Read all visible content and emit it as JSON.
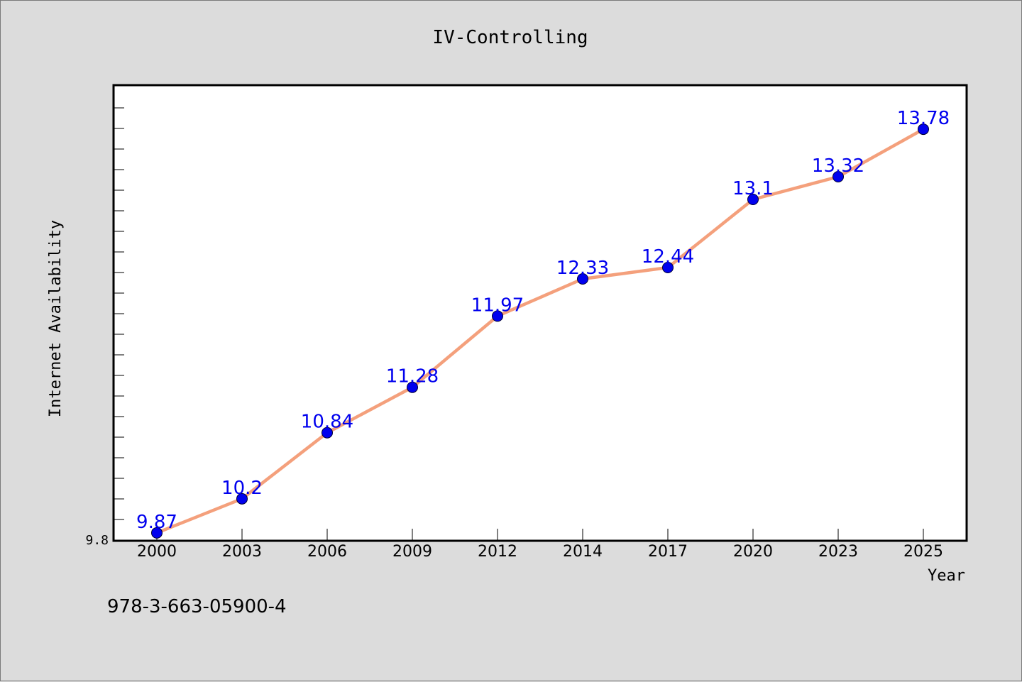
{
  "chart_data": {
    "type": "line",
    "title": "IV-Controlling",
    "xlabel": "Year",
    "ylabel": "Internet Availability",
    "categories": [
      "2000",
      "2003",
      "2006",
      "2009",
      "2012",
      "2014",
      "2017",
      "2020",
      "2023",
      "2025"
    ],
    "values": [
      9.87,
      10.2,
      10.84,
      11.28,
      11.97,
      12.33,
      12.44,
      13.1,
      13.32,
      13.78
    ],
    "y_tick_labels": [
      "9.8"
    ],
    "ylim": [
      9.8,
      14.2
    ],
    "grid": false,
    "legend": "none",
    "annotation": "978-3-663-05900-4",
    "colors": {
      "line": "#f4a07c",
      "marker": "#0000ee",
      "data_label": "#0000ee",
      "background": "#dcdcdc",
      "plot_bg": "#ffffff"
    }
  }
}
